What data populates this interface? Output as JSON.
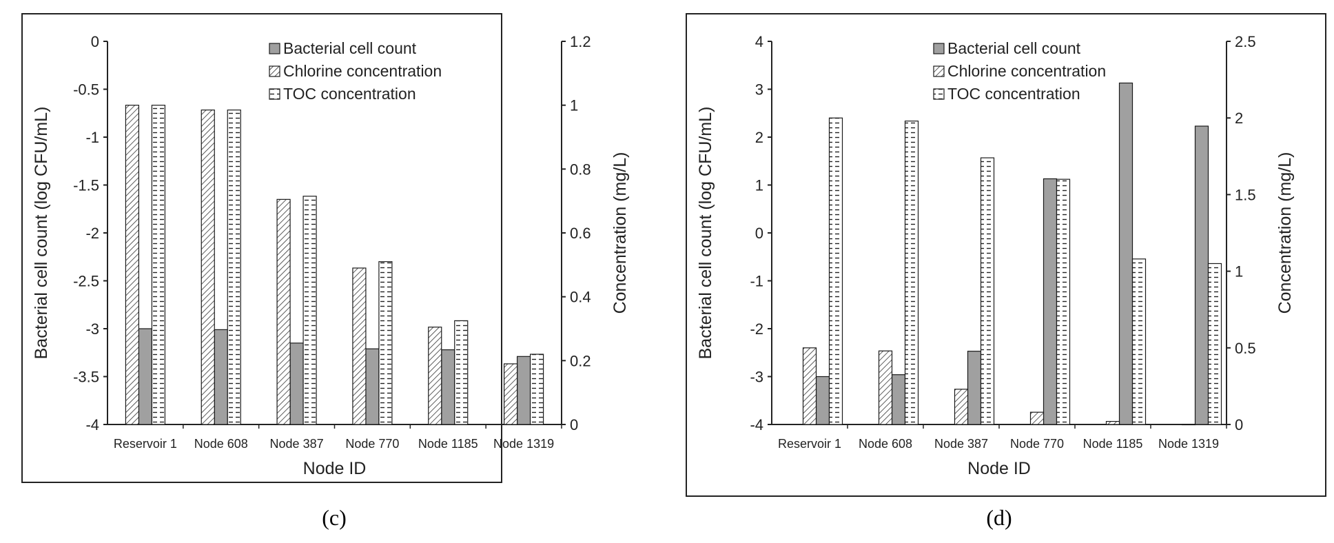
{
  "chart_data": [
    {
      "type": "bar",
      "panel_label": "(c)",
      "categories": [
        "Reservoir 1",
        "Node 608",
        "Node 387",
        "Node 770",
        "Node 1185",
        "Node 1319"
      ],
      "xlabel": "Node ID",
      "ylabel_left": "Bacterial cell count (log CFU/mL)",
      "ylabel_right": "Concentration (mg/L)",
      "ylim_left": [
        -4,
        0
      ],
      "ylim_right": [
        0,
        1.2
      ],
      "yticks_left": [
        "0",
        "-0.5",
        "-1",
        "-1.5",
        "-2",
        "-2.5",
        "-3",
        "-3.5",
        "-4"
      ],
      "yticks_right": [
        "1.2",
        "1",
        "0.8",
        "0.6",
        "0.4",
        "0.2",
        "0"
      ],
      "legend_position": "top-center",
      "series": [
        {
          "name": "Bacterial cell count",
          "axis": "left",
          "values": [
            -3.0,
            -3.01,
            -3.15,
            -3.21,
            -3.22,
            -3.29
          ]
        },
        {
          "name": "Chlorine concentration",
          "axis": "right",
          "values": [
            1.0,
            0.985,
            0.705,
            0.49,
            0.305,
            0.19
          ]
        },
        {
          "name": "TOC concentration",
          "axis": "right",
          "values": [
            1.0,
            0.985,
            0.715,
            0.51,
            0.325,
            0.22
          ]
        }
      ]
    },
    {
      "type": "bar",
      "panel_label": "(d)",
      "categories": [
        "Reservoir 1",
        "Node 608",
        "Node 387",
        "Node 770",
        "Node 1185",
        "Node 1319"
      ],
      "xlabel": "Node ID",
      "ylabel_left": "Bacterial cell count (log CFU/mL)",
      "ylabel_right": "Concentration (mg/L)",
      "ylim_left": [
        -4,
        4
      ],
      "ylim_right": [
        0,
        2.5
      ],
      "yticks_left": [
        "4",
        "3",
        "2",
        "1",
        "0",
        "-1",
        "-2",
        "-3",
        "-4"
      ],
      "yticks_right": [
        "2.5",
        "2",
        "1.5",
        "1",
        "0.5",
        "0"
      ],
      "legend_position": "top-center",
      "series": [
        {
          "name": "Bacterial cell count",
          "axis": "left",
          "values": [
            -3.0,
            -2.96,
            -2.47,
            1.13,
            3.13,
            2.23
          ]
        },
        {
          "name": "Chlorine concentration",
          "axis": "right",
          "values": [
            0.5,
            0.48,
            0.23,
            0.08,
            0.02,
            0.0
          ]
        },
        {
          "name": "TOC concentration",
          "axis": "right",
          "values": [
            2.0,
            1.98,
            1.74,
            1.6,
            1.08,
            1.05
          ]
        }
      ]
    }
  ],
  "colors": {
    "bacterial": "#a0a0a0",
    "outline": "#1a1a1a"
  }
}
